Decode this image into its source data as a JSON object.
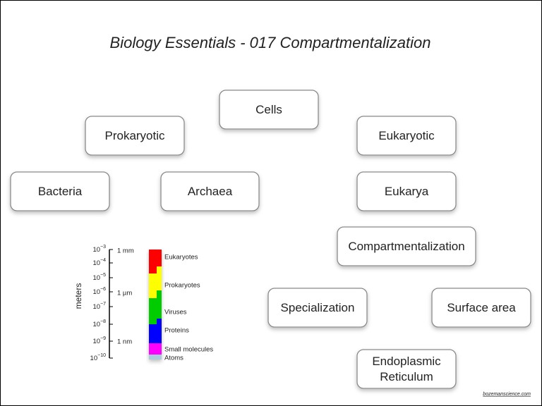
{
  "title": "Biology Essentials - 017 Compartmentalization",
  "nodes": [
    {
      "lines": [
        "Cells"
      ]
    },
    {
      "lines": [
        "Prokaryotic"
      ]
    },
    {
      "lines": [
        "Eukaryotic"
      ]
    },
    {
      "lines": [
        "Bacteria"
      ]
    },
    {
      "lines": [
        "Archaea"
      ]
    },
    {
      "lines": [
        "Eukarya"
      ]
    },
    {
      "lines": [
        "Compartmentalization"
      ]
    },
    {
      "lines": [
        "Specialization"
      ]
    },
    {
      "lines": [
        "Surface area"
      ]
    },
    {
      "lines": [
        "Endoplasmic",
        "Reticulum"
      ]
    }
  ],
  "scale": {
    "axis_label": "meters",
    "ticks": [
      {
        "base": "10",
        "exp": "−3"
      },
      {
        "base": "10",
        "exp": "−4"
      },
      {
        "base": "10",
        "exp": "−5"
      },
      {
        "base": "10",
        "exp": "−6"
      },
      {
        "base": "10",
        "exp": "−7"
      },
      {
        "base": "10",
        "exp": "−8"
      },
      {
        "base": "10",
        "exp": "−9"
      },
      {
        "base": "10",
        "exp": "−10"
      }
    ],
    "units": [
      "1 mm",
      "1 µm",
      "1 nm"
    ],
    "bands": [
      "Eukaryotes",
      "Prokaryotes",
      "Viruses",
      "Proteins",
      "Small molecules",
      "Atoms"
    ]
  },
  "footer": "bozemanscience.com"
}
